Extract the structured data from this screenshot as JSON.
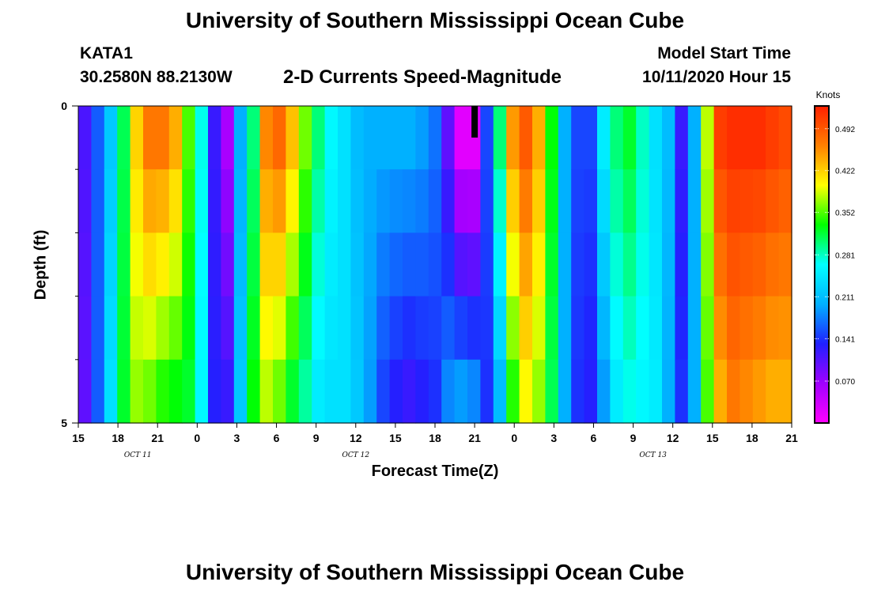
{
  "header": {
    "title": "University of Southern Mississippi Ocean Cube",
    "station": "KATA1",
    "coordinates": "30.2580N 88.2130W",
    "subtitle": "2-D Currents Speed-Magnitude",
    "model_start_label": "Model Start Time",
    "model_start_value": "10/11/2020 Hour 15"
  },
  "footer": {
    "title": "University of Southern Mississippi Ocean Cube"
  },
  "colors": {
    "colormap": [
      "#ff00ff",
      "#a000ff",
      "#2020ff",
      "#00b0ff",
      "#00ffff",
      "#00ff00",
      "#ffff00",
      "#ff8000",
      "#ff2000"
    ],
    "now_marker": "#000000"
  },
  "chart_data": {
    "type": "heatmap",
    "xlabel": "Forecast Time(Z)",
    "ylabel": "Depth (ft)",
    "ylim": [
      0,
      5
    ],
    "y_tick_labels": [
      "0",
      "5"
    ],
    "x_tick_labels": [
      "15",
      "18",
      "21",
      "0",
      "3",
      "6",
      "9",
      "12",
      "15",
      "18",
      "21",
      "0",
      "3",
      "6",
      "9",
      "12",
      "15",
      "18",
      "21"
    ],
    "forecast_hours": [
      0,
      54
    ],
    "day_labels": [
      {
        "text": "OCT 11",
        "hour": 4.5
      },
      {
        "text": "OCT 12",
        "hour": 21
      },
      {
        "text": "OCT 13",
        "hour": 43.5
      }
    ],
    "now_marker_hour": 30,
    "colorbar": {
      "units": "Knots",
      "range": [
        0.0,
        0.53
      ],
      "tick_values": [
        0.07,
        0.141,
        0.211,
        0.281,
        0.352,
        0.422,
        0.492
      ],
      "tick_labels": [
        "0.070",
        "0.141",
        "0.211",
        "0.281",
        "0.352",
        "0.422",
        "0.492"
      ]
    },
    "depth_rows": 5,
    "surface_speed_knots": [
      0.11,
      0.16,
      0.22,
      0.31,
      0.42,
      0.47,
      0.47,
      0.44,
      0.35,
      0.27,
      0.12,
      0.06,
      0.2,
      0.3,
      0.46,
      0.48,
      0.43,
      0.36,
      0.3,
      0.26,
      0.24,
      0.21,
      0.2,
      0.2,
      0.2,
      0.2,
      0.19,
      0.17,
      0.1,
      0.02,
      0.02,
      0.15,
      0.3,
      0.45,
      0.49,
      0.44,
      0.33,
      0.2,
      0.15,
      0.15,
      0.25,
      0.3,
      0.32,
      0.28,
      0.24,
      0.21,
      0.12,
      0.2,
      0.38,
      0.51,
      0.52,
      0.52,
      0.52,
      0.51,
      0.5
    ],
    "bottom_speed_knots": [
      0.1,
      0.16,
      0.24,
      0.32,
      0.37,
      0.36,
      0.34,
      0.33,
      0.32,
      0.26,
      0.13,
      0.12,
      0.22,
      0.33,
      0.38,
      0.36,
      0.32,
      0.29,
      0.25,
      0.24,
      0.24,
      0.22,
      0.19,
      0.15,
      0.13,
      0.12,
      0.13,
      0.14,
      0.18,
      0.19,
      0.18,
      0.14,
      0.21,
      0.34,
      0.4,
      0.37,
      0.31,
      0.2,
      0.14,
      0.13,
      0.19,
      0.25,
      0.27,
      0.26,
      0.25,
      0.2,
      0.14,
      0.2,
      0.35,
      0.44,
      0.47,
      0.46,
      0.45,
      0.44,
      0.44
    ]
  }
}
